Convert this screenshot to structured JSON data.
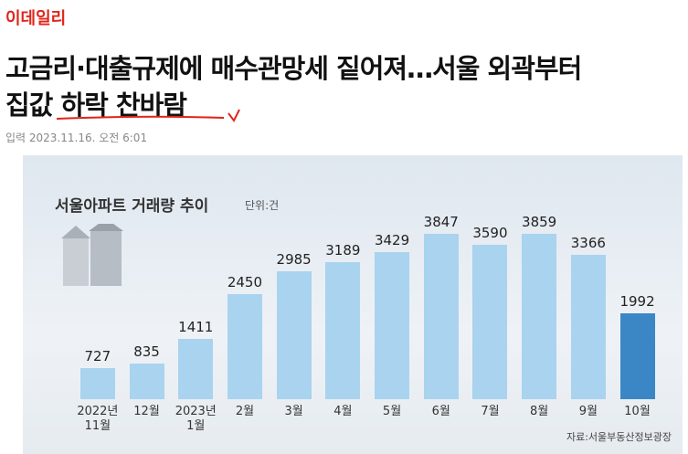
{
  "header": {
    "logo": "이데일리",
    "headline": [
      "고금리·대출규제에 매수관망세 짙어져…서울 외곽부터",
      "집값 하락 찬바람"
    ],
    "dateline": "입력 2023.11.16. 오전 6:01"
  },
  "chart_data": {
    "type": "bar",
    "title": "서울아파트 거래량 추이",
    "subtitle": "단위:건",
    "source": "자료:서울부동산정보광장",
    "categories": [
      "2022년\n11월",
      "12월",
      "2023년\n1월",
      "2월",
      "3월",
      "4월",
      "5월",
      "6월",
      "7월",
      "8월",
      "9월",
      "10월"
    ],
    "values": [
      727,
      835,
      1411,
      2450,
      2985,
      3189,
      3429,
      3847,
      3590,
      3859,
      3366,
      1992
    ],
    "colors": [
      "#a9d3ef",
      "#a9d3ef",
      "#a9d3ef",
      "#a9d3ef",
      "#a9d3ef",
      "#a9d3ef",
      "#a9d3ef",
      "#a9d3ef",
      "#a9d3ef",
      "#a9d3ef",
      "#a9d3ef",
      "#3b87c6"
    ]
  }
}
